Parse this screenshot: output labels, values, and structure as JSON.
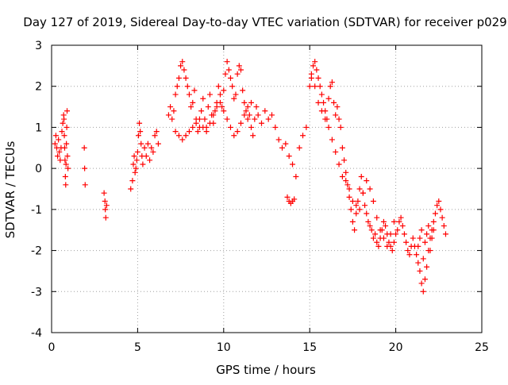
{
  "chart_data": {
    "type": "scatter",
    "title": "Day 127 of 2019, Sidereal Day-to-day VTEC variation (SDTVAR) for receiver p029",
    "xlabel": "GPS time / hours",
    "ylabel": "SDTVAR / TECUs",
    "xlim": [
      0,
      25
    ],
    "ylim": [
      -4,
      3
    ],
    "xticks": [
      0,
      5,
      10,
      15,
      20,
      25
    ],
    "yticks": [
      -4,
      -3,
      -2,
      -1,
      0,
      1,
      2,
      3
    ],
    "grid": true,
    "marker": "+",
    "series": [
      {
        "name": "SDTVAR p029",
        "color": "#ff0000",
        "x": [
          0.2,
          0.25,
          0.3,
          0.35,
          0.4,
          0.45,
          0.5,
          0.55,
          0.6,
          0.65,
          0.7,
          0.72,
          0.74,
          0.76,
          0.78,
          0.8,
          0.82,
          0.84,
          0.86,
          0.88,
          0.9,
          0.92,
          0.95,
          1.9,
          1.92,
          1.95,
          3.05,
          3.1,
          3.12,
          3.15,
          3.2,
          4.6,
          4.7,
          4.75,
          4.8,
          4.85,
          4.9,
          4.95,
          5.0,
          5.05,
          5.1,
          5.15,
          5.2,
          5.25,
          5.3,
          5.4,
          5.5,
          5.6,
          5.7,
          5.8,
          5.9,
          6.0,
          6.1,
          6.2,
          6.8,
          6.9,
          7.0,
          7.1,
          7.2,
          7.3,
          7.4,
          7.5,
          7.6,
          7.7,
          7.8,
          7.9,
          8.0,
          8.1,
          8.2,
          8.3,
          8.4,
          8.5,
          8.6,
          8.7,
          8.8,
          8.9,
          9.0,
          9.1,
          9.2,
          9.3,
          9.4,
          9.5,
          9.6,
          9.7,
          9.8,
          9.9,
          10.0,
          10.1,
          10.2,
          10.3,
          10.4,
          10.5,
          10.6,
          10.7,
          10.8,
          10.9,
          11.0,
          11.1,
          11.2,
          11.3,
          11.4,
          11.5,
          11.6,
          11.7,
          11.8,
          11.9,
          12.0,
          12.2,
          12.4,
          12.6,
          12.8,
          13.0,
          13.2,
          13.4,
          13.6,
          13.8,
          14.0,
          14.2,
          14.4,
          14.6,
          14.8,
          13.7,
          13.8,
          13.9,
          14.0,
          14.1,
          15.0,
          15.1,
          15.2,
          15.3,
          15.4,
          15.5,
          15.6,
          15.7,
          15.8,
          15.9,
          16.0,
          16.1,
          16.2,
          16.3,
          16.4,
          16.5,
          16.6,
          16.7,
          16.8,
          16.9,
          17.0,
          17.1,
          17.2,
          17.3,
          17.4,
          17.5,
          17.6,
          17.7,
          17.8,
          17.9,
          18.0,
          18.1,
          18.2,
          18.3,
          18.4,
          18.5,
          18.6,
          18.7,
          18.8,
          18.9,
          19.0,
          19.1,
          19.2,
          19.3,
          19.4,
          19.5,
          19.6,
          19.7,
          19.8,
          19.9,
          20.0,
          20.1,
          20.2,
          20.3,
          20.4,
          20.5,
          20.6,
          20.7,
          20.8,
          20.9,
          21.0,
          21.1,
          21.2,
          21.3,
          21.4,
          21.5,
          21.6,
          21.7,
          21.8,
          21.9,
          22.0,
          22.1,
          22.2,
          22.3,
          22.4,
          22.5,
          22.6,
          22.7,
          22.8,
          22.9,
          15.1,
          15.3,
          15.5,
          15.7,
          15.9,
          16.1,
          16.3,
          16.5,
          16.7,
          16.9,
          17.1,
          17.3,
          17.5,
          17.7,
          17.9,
          18.1,
          18.3,
          18.5,
          18.7,
          18.9,
          19.1,
          19.3,
          19.5,
          19.7,
          19.9,
          7.2,
          7.4,
          7.6,
          7.8,
          8.0,
          8.2,
          8.4,
          8.6,
          8.8,
          9.0,
          9.2,
          9.4,
          9.6,
          9.8,
          10.0,
          10.2,
          10.4,
          10.6,
          10.8,
          11.0,
          11.2,
          11.4,
          11.6,
          21.3,
          21.4,
          21.5,
          21.6,
          21.7,
          21.8,
          21.9,
          22.0,
          22.1,
          22.2
        ],
        "y": [
          0.6,
          0.8,
          0.5,
          0.3,
          0.7,
          0.4,
          0.2,
          0.5,
          0.9,
          1.1,
          1.3,
          1.2,
          0.8,
          0.5,
          0.2,
          -0.2,
          -0.4,
          0.1,
          0.6,
          1.0,
          1.4,
          0.3,
          0.0,
          0.5,
          0.0,
          -0.4,
          -0.6,
          -0.8,
          -1.0,
          -1.2,
          -0.9,
          -0.5,
          -0.3,
          0.1,
          0.3,
          -0.1,
          0.0,
          0.2,
          0.4,
          0.8,
          1.1,
          0.9,
          0.6,
          0.3,
          0.1,
          0.5,
          0.3,
          0.6,
          0.2,
          0.5,
          0.4,
          0.8,
          0.9,
          0.6,
          1.3,
          1.5,
          1.2,
          1.4,
          1.8,
          2.0,
          2.2,
          2.5,
          2.6,
          2.4,
          2.2,
          2.0,
          1.8,
          1.5,
          1.6,
          1.9,
          1.2,
          0.9,
          1.0,
          1.4,
          1.7,
          1.2,
          1.0,
          1.5,
          1.8,
          1.3,
          1.1,
          1.4,
          1.6,
          2.0,
          1.8,
          1.5,
          1.9,
          2.3,
          2.6,
          2.4,
          2.2,
          2.0,
          1.7,
          1.8,
          2.3,
          2.5,
          2.4,
          1.9,
          1.6,
          1.4,
          1.2,
          1.3,
          1.0,
          0.8,
          1.2,
          1.5,
          1.3,
          1.1,
          1.4,
          1.2,
          1.3,
          1.0,
          0.7,
          0.5,
          0.6,
          0.3,
          0.1,
          -0.2,
          0.5,
          0.8,
          1.0,
          -0.7,
          -0.8,
          -0.85,
          -0.8,
          -0.75,
          2.0,
          2.3,
          2.5,
          2.6,
          2.4,
          2.2,
          2.0,
          1.8,
          1.6,
          1.4,
          1.2,
          1.7,
          2.0,
          2.1,
          1.6,
          1.3,
          1.5,
          1.2,
          1.0,
          0.5,
          0.2,
          -0.1,
          -0.4,
          -0.7,
          -1.0,
          -1.3,
          -1.5,
          -1.1,
          -0.8,
          -0.5,
          -0.2,
          -0.6,
          -0.9,
          -1.1,
          -1.3,
          -1.4,
          -1.5,
          -1.7,
          -1.6,
          -1.8,
          -1.9,
          -1.7,
          -1.5,
          -1.3,
          -1.4,
          -1.6,
          -1.8,
          -1.9,
          -2.0,
          -1.8,
          -1.6,
          -1.5,
          -1.3,
          -1.2,
          -1.4,
          -1.6,
          -1.8,
          -2.0,
          -2.1,
          -1.9,
          -1.7,
          -1.9,
          -2.1,
          -2.3,
          -2.5,
          -2.8,
          -3.0,
          -2.7,
          -2.4,
          -2.0,
          -1.7,
          -1.5,
          -1.3,
          -1.1,
          -0.9,
          -0.8,
          -1.0,
          -1.2,
          -1.4,
          -1.6,
          2.2,
          2.0,
          1.6,
          1.4,
          1.2,
          1.0,
          0.7,
          0.4,
          0.1,
          -0.2,
          -0.3,
          -0.5,
          -0.8,
          -0.9,
          -1.0,
          -0.6,
          -0.3,
          -0.5,
          -0.8,
          -1.2,
          -1.5,
          -1.7,
          -1.9,
          -1.6,
          -1.3,
          0.9,
          0.8,
          0.7,
          0.8,
          0.9,
          1.0,
          1.1,
          1.2,
          1.0,
          0.9,
          1.1,
          1.3,
          1.5,
          1.6,
          1.4,
          1.2,
          1.0,
          0.8,
          0.9,
          1.1,
          1.3,
          1.5,
          1.6,
          -1.9,
          -1.7,
          -1.5,
          -2.2,
          -1.8,
          -1.6,
          -1.4,
          -2.0,
          -1.7,
          -1.5
        ]
      }
    ]
  }
}
